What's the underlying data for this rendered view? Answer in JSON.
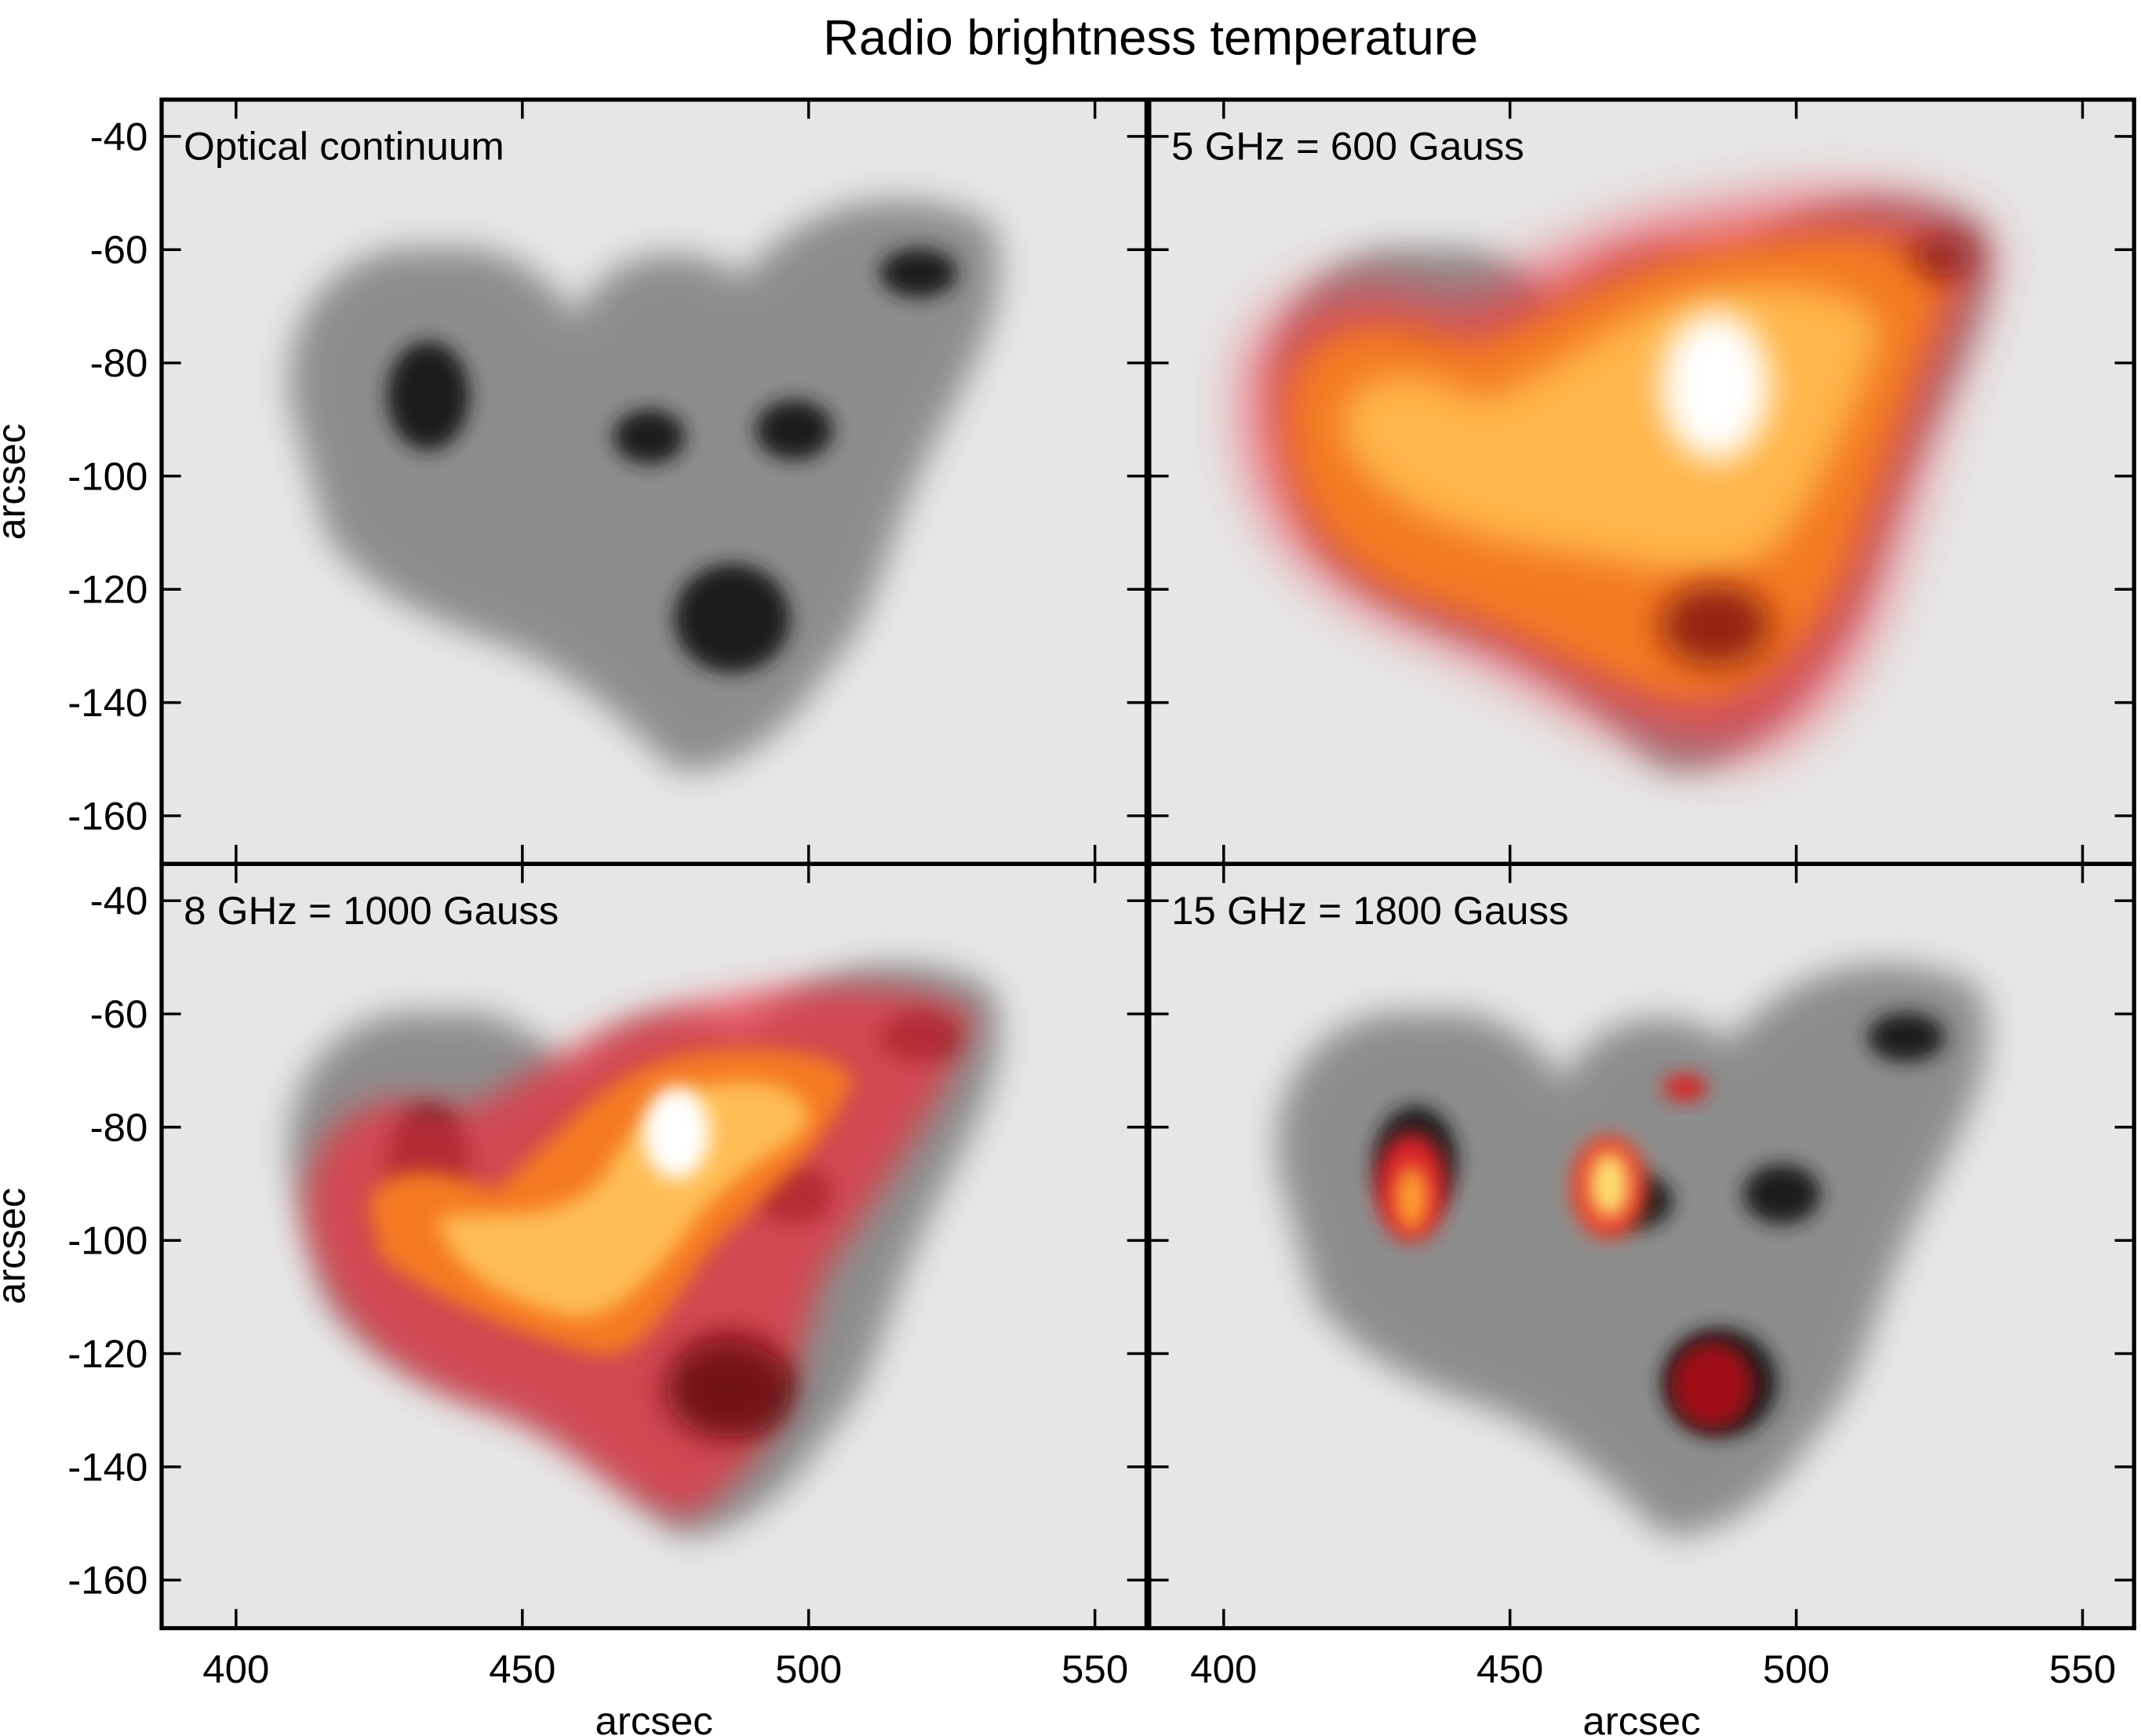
{
  "title": "Radio brightness temperature",
  "chart_data": [
    {
      "type": "image",
      "title": "Optical continuum",
      "xlim": [
        387,
        559
      ],
      "ylim": [
        -168.5,
        -33.5
      ],
      "xticks": [
        400,
        450,
        500,
        550
      ],
      "yticks": [
        -40,
        -60,
        -80,
        -100,
        -120,
        -140,
        -160
      ],
      "ylabel": "arcsec"
    },
    {
      "type": "image",
      "title": "5 GHz = 600 Gauss",
      "xlim": [
        387,
        559
      ],
      "ylim": [
        -168.5,
        -33.5
      ],
      "xticks": [
        400,
        450,
        500,
        550
      ],
      "yticks": [
        -40,
        -60,
        -80,
        -100,
        -120,
        -140,
        -160
      ]
    },
    {
      "type": "image",
      "title": "8 GHz = 1000 Gauss",
      "xlim": [
        387,
        559
      ],
      "ylim": [
        -168.5,
        -33.5
      ],
      "xticks": [
        400,
        450,
        500,
        550
      ],
      "yticks": [
        -40,
        -60,
        -80,
        -100,
        -120,
        -140,
        -160
      ],
      "xlabel": "arcsec",
      "ylabel": "arcsec"
    },
    {
      "type": "image",
      "title": "15 GHz = 1800 Gauss",
      "xlim": [
        387,
        559
      ],
      "ylim": [
        -168.5,
        -33.5
      ],
      "xticks": [
        400,
        450,
        500,
        550
      ],
      "yticks": [
        -40,
        -60,
        -80,
        -100,
        -120,
        -140,
        -160
      ],
      "xlabel": "arcsec"
    }
  ]
}
